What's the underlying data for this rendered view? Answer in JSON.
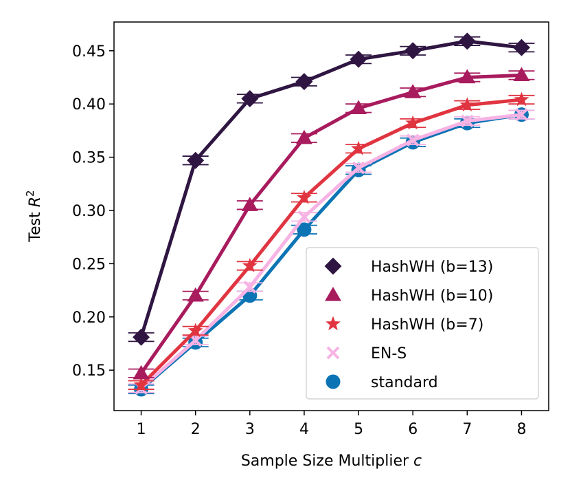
{
  "chart_data": {
    "type": "line",
    "title": "",
    "xlabel": "Sample Size Multiplier ",
    "xlabel_var": "c",
    "ylabel": "Test ",
    "ylabel_var": "R",
    "ylabel_sup": "2",
    "xlim": [
      0.5,
      8.5
    ],
    "ylim": [
      0.112,
      0.477
    ],
    "xticks": [
      1,
      2,
      3,
      4,
      5,
      6,
      7,
      8
    ],
    "yticks": [
      0.15,
      0.2,
      0.25,
      0.3,
      0.35,
      0.4,
      0.45
    ],
    "ytick_labels": [
      "0.15",
      "0.20",
      "0.25",
      "0.30",
      "0.35",
      "0.40",
      "0.45"
    ],
    "legend_position": "lower-right",
    "series": [
      {
        "name": "standard",
        "marker": "circle",
        "color": "#0c74b5",
        "x": [
          1,
          2,
          3,
          4,
          5,
          6,
          7,
          8
        ],
        "values": [
          0.132,
          0.176,
          0.22,
          0.282,
          0.338,
          0.364,
          0.382,
          0.39
        ],
        "err": [
          0.004,
          0.004,
          0.004,
          0.004,
          0.004,
          0.004,
          0.004,
          0.004
        ]
      },
      {
        "name": "EN-S",
        "marker": "x",
        "color": "#f7b3e4",
        "x": [
          1,
          2,
          3,
          4,
          5,
          6,
          7,
          8
        ],
        "values": [
          0.133,
          0.178,
          0.228,
          0.294,
          0.34,
          0.366,
          0.384,
          0.39
        ],
        "err": [
          0.004,
          0.004,
          0.004,
          0.004,
          0.004,
          0.004,
          0.004,
          0.004
        ]
      },
      {
        "name": "HashWH (b=7)",
        "marker": "star",
        "color": "#e03541",
        "x": [
          1,
          2,
          3,
          4,
          5,
          6,
          7,
          8
        ],
        "values": [
          0.136,
          0.187,
          0.248,
          0.312,
          0.358,
          0.382,
          0.399,
          0.404
        ],
        "err": [
          0.004,
          0.004,
          0.004,
          0.004,
          0.004,
          0.004,
          0.004,
          0.004
        ]
      },
      {
        "name": "HashWH (b=10)",
        "marker": "triangle",
        "color": "#a81b5d",
        "x": [
          1,
          2,
          3,
          4,
          5,
          6,
          7,
          8
        ],
        "values": [
          0.147,
          0.22,
          0.305,
          0.368,
          0.396,
          0.411,
          0.425,
          0.427
        ],
        "err": [
          0.004,
          0.004,
          0.004,
          0.004,
          0.004,
          0.004,
          0.004,
          0.004
        ]
      },
      {
        "name": "HashWH (b=13)",
        "marker": "diamond",
        "color": "#2f1642",
        "x": [
          1,
          2,
          3,
          4,
          5,
          6,
          7,
          8
        ],
        "values": [
          0.181,
          0.347,
          0.405,
          0.421,
          0.442,
          0.45,
          0.459,
          0.453
        ],
        "err": [
          0.004,
          0.004,
          0.004,
          0.004,
          0.004,
          0.004,
          0.004,
          0.004
        ]
      }
    ],
    "legend_order": [
      "HashWH (b=13)",
      "HashWH (b=10)",
      "HashWH (b=7)",
      "EN-S",
      "standard"
    ]
  }
}
